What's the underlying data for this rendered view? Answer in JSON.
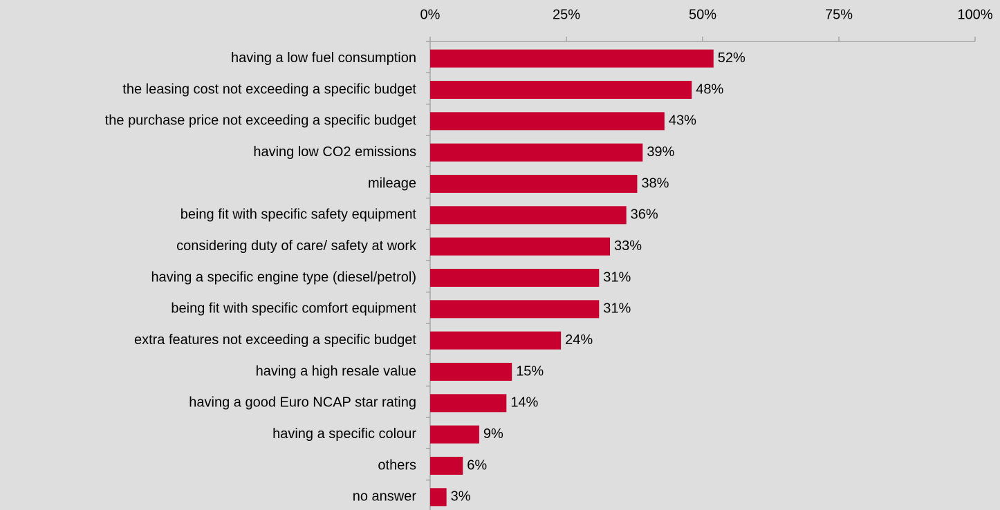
{
  "chart_data": {
    "type": "bar",
    "categories": [
      "having a low fuel consumption",
      "the leasing cost not exceeding a specific budget",
      "the purchase price not exceeding a specific budget",
      "having low CO2 emissions",
      "mileage",
      "being fit with specific safety equipment",
      "considering duty of care/ safety at work",
      "having a specific engine type (diesel/petrol)",
      "being fit with specific comfort equipment",
      "extra features not exceeding a specific budget",
      "having a high resale value",
      "having a good Euro NCAP star rating",
      "having a specific colour",
      "others",
      "no answer"
    ],
    "values": [
      52,
      48,
      43,
      39,
      38,
      36,
      33,
      31,
      31,
      24,
      15,
      14,
      9,
      6,
      3
    ],
    "value_labels": [
      "52%",
      "48%",
      "43%",
      "39%",
      "38%",
      "36%",
      "33%",
      "31%",
      "31%",
      "24%",
      "15%",
      "14%",
      "9%",
      "6%",
      "3%"
    ],
    "color": "#c8002f",
    "xlim": [
      0,
      100
    ],
    "xticks": [
      {
        "value": 0,
        "label": "0%"
      },
      {
        "value": 25,
        "label": "25%"
      },
      {
        "value": 50,
        "label": "50%"
      },
      {
        "value": 75,
        "label": "75%"
      },
      {
        "value": 100,
        "label": "100%"
      }
    ]
  }
}
